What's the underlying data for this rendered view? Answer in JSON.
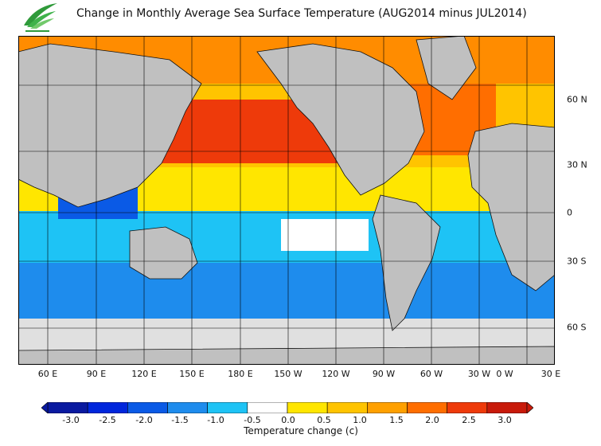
{
  "title": "Change in Monthly Average Sea Surface Temperature (AUG2014 minus JUL2014)",
  "logo": {
    "name": "hong-kong-observatory-logo"
  },
  "map": {
    "projection": "equirectangular",
    "lon_labels": [
      "60 E",
      "90 E",
      "120 E",
      "150 E",
      "180 E",
      "150 W",
      "120 W",
      "90 W",
      "60 W",
      "30 W",
      "0 W",
      "30 E"
    ],
    "lat_labels": [
      "60 N",
      "30 N",
      "0",
      "30 S",
      "60 S"
    ],
    "land_color": "#c0c0c0",
    "ice_color": "#e0e0e0"
  },
  "colorbar": {
    "ticks": [
      "-3.0",
      "-2.5",
      "-2.0",
      "-1.5",
      "-1.0",
      "-0.5",
      "0.0",
      "0.5",
      "1.0",
      "1.5",
      "2.0",
      "2.5",
      "3.0"
    ],
    "colors": [
      "#0a1aa0",
      "#0026dc",
      "#0a5ae6",
      "#1e8ced",
      "#1ec3f5",
      "#ffffff",
      "#ffe600",
      "#ffc400",
      "#ffa000",
      "#ff6e00",
      "#ee3a0a",
      "#c81a0a"
    ],
    "label": "Temperature change  (c)"
  }
}
